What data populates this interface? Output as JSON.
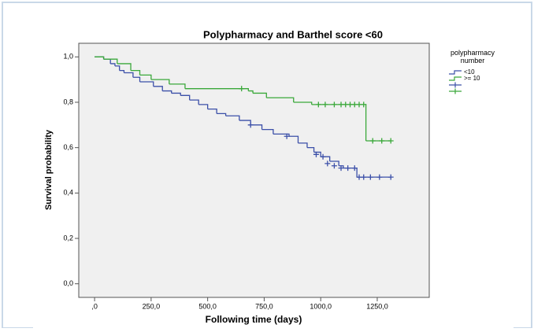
{
  "chart_data": {
    "type": "step",
    "title": "Polypharmacy and Barthel score <60",
    "x_label": "Following time (days)",
    "y_label": "Survival probability",
    "legend_title": "polypharmacy number",
    "xlim": [
      -70,
      1480
    ],
    "ylim": [
      -0.06,
      1.06
    ],
    "xticks": [
      {
        "value": 0,
        "label": ",0"
      },
      {
        "value": 250,
        "label": "250,0"
      },
      {
        "value": 500,
        "label": "500,0"
      },
      {
        "value": 750,
        "label": "750,0"
      },
      {
        "value": 1000,
        "label": "1000,0"
      },
      {
        "value": 1250,
        "label": "1250,0"
      }
    ],
    "yticks": [
      {
        "value": 0,
        "label": "0,0"
      },
      {
        "value": 0.2,
        "label": "0,2"
      },
      {
        "value": 0.4,
        "label": "0,4"
      },
      {
        "value": 0.6,
        "label": "0,6"
      },
      {
        "value": 0.8,
        "label": "0,8"
      },
      {
        "value": 1,
        "label": "1,0"
      }
    ],
    "series": [
      {
        "name": "<10",
        "kind": "line",
        "color": "#3b4fa8",
        "x": [
          0,
          40,
          70,
          90,
          110,
          130,
          170,
          200,
          260,
          300,
          340,
          380,
          420,
          460,
          500,
          540,
          580,
          640,
          690,
          740,
          790,
          860,
          900,
          940,
          970,
          1000,
          1040,
          1080,
          1100,
          1160,
          1310
        ],
        "values": [
          1.0,
          0.99,
          0.97,
          0.96,
          0.94,
          0.93,
          0.91,
          0.89,
          0.87,
          0.85,
          0.84,
          0.83,
          0.81,
          0.79,
          0.77,
          0.75,
          0.74,
          0.72,
          0.7,
          0.68,
          0.66,
          0.65,
          0.62,
          0.6,
          0.58,
          0.56,
          0.54,
          0.52,
          0.51,
          0.47,
          0.47
        ]
      },
      {
        "name": ">= 10",
        "kind": "line",
        "color": "#3aa83a",
        "x": [
          0,
          40,
          100,
          160,
          200,
          250,
          330,
          400,
          680,
          700,
          760,
          880,
          960,
          1200,
          1310
        ],
        "values": [
          1.0,
          0.99,
          0.97,
          0.94,
          0.92,
          0.9,
          0.88,
          0.86,
          0.85,
          0.84,
          0.82,
          0.8,
          0.79,
          0.63,
          0.63
        ]
      },
      {
        "name": null,
        "kind": "censored",
        "color": "#3b4fa8",
        "x": [
          690,
          850,
          980,
          1010,
          1030,
          1060,
          1090,
          1120,
          1150,
          1170,
          1190,
          1220,
          1260,
          1310
        ],
        "values": [
          0.7,
          0.65,
          0.57,
          0.56,
          0.53,
          0.52,
          0.51,
          0.51,
          0.51,
          0.47,
          0.47,
          0.47,
          0.47,
          0.47
        ]
      },
      {
        "name": null,
        "kind": "censored",
        "color": "#3aa83a",
        "x": [
          650,
          990,
          1020,
          1060,
          1090,
          1110,
          1130,
          1150,
          1170,
          1190,
          1230,
          1270,
          1310
        ],
        "values": [
          0.86,
          0.79,
          0.79,
          0.79,
          0.79,
          0.79,
          0.79,
          0.79,
          0.79,
          0.79,
          0.63,
          0.63,
          0.63
        ]
      }
    ]
  }
}
